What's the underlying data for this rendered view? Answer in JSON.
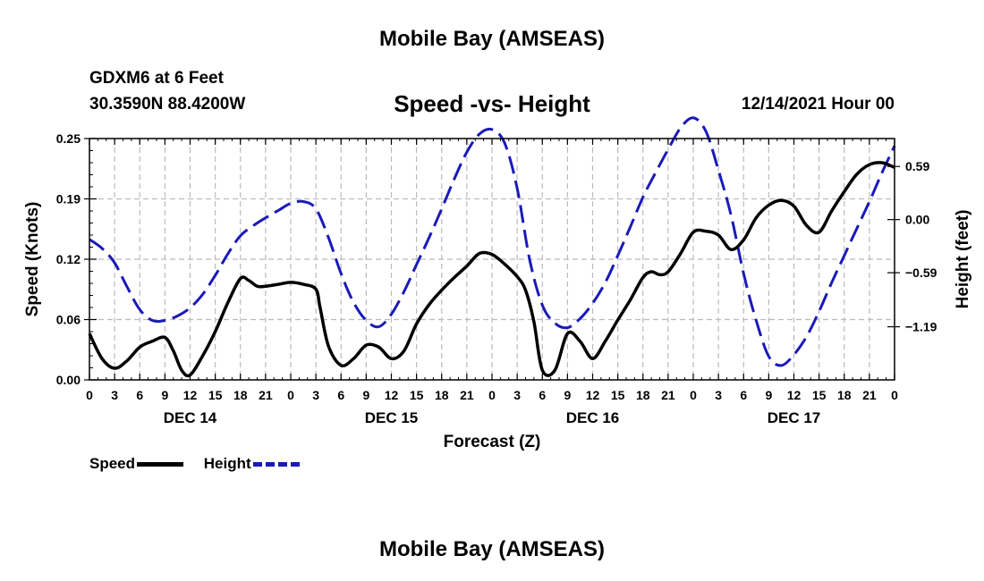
{
  "header": {
    "title": "Mobile Bay (AMSEAS)",
    "station": "GDXM6 at 6 Feet",
    "coordinates": "30.3590N  88.4200W",
    "subtitle": "Speed -vs- Height",
    "datetime": "12/14/2021 Hour 00"
  },
  "footer": {
    "title": "Mobile Bay (AMSEAS)"
  },
  "chart_data": {
    "type": "line",
    "xlabel": "Forecast (Z)",
    "ylabel_left": "Speed (Knots)",
    "ylabel_right": "Height (feet)",
    "xlim": [
      0,
      96
    ],
    "ylim_left": [
      0,
      0.25
    ],
    "ylim_right": [
      -1.78,
      0.9
    ],
    "x_tick_labels": [
      "0",
      "3",
      "6",
      "9",
      "12",
      "15",
      "18",
      "21",
      "0",
      "3",
      "6",
      "9",
      "12",
      "15",
      "18",
      "21",
      "0",
      "3",
      "6",
      "9",
      "12",
      "15",
      "18",
      "21",
      "0",
      "3",
      "6",
      "9",
      "12",
      "15",
      "18",
      "21",
      "0"
    ],
    "day_labels": [
      {
        "label": "DEC 14",
        "x": 12
      },
      {
        "label": "DEC 15",
        "x": 36
      },
      {
        "label": "DEC 16",
        "x": 60
      },
      {
        "label": "DEC 17",
        "x": 84
      }
    ],
    "y_left_ticks": [
      "0.00",
      "0.06",
      "0.12",
      "0.19",
      "0.25"
    ],
    "y_left_tick_values": [
      0,
      0.0625,
      0.125,
      0.1875,
      0.25
    ],
    "y_right_ticks": [
      "0.59",
      "0.00",
      "−0.59",
      "−1.19"
    ],
    "y_right_tick_values": [
      0.59,
      0,
      -0.59,
      -1.19
    ],
    "grid": true,
    "legend": [
      {
        "name": "Speed",
        "color": "#000000"
      },
      {
        "name": "Height",
        "color": "#1a1ab8"
      }
    ],
    "series": [
      {
        "name": "Speed",
        "axis": "left",
        "color": "#000000",
        "style": "solid",
        "x": [
          0,
          1.5,
          3,
          4.5,
          6,
          7.5,
          9,
          10,
          11,
          12,
          13.5,
          15,
          16.5,
          18,
          19,
          20,
          21,
          22.5,
          24,
          25.5,
          27,
          27.5,
          28.5,
          30,
          31.5,
          33,
          34.5,
          36,
          37.5,
          39,
          40.5,
          42,
          43.5,
          45,
          46.5,
          48,
          49.5,
          51,
          52,
          53,
          54,
          55.5,
          57,
          58.5,
          60,
          61.5,
          63,
          64.5,
          66,
          67,
          68,
          69,
          70.5,
          72,
          73.5,
          75,
          76.5,
          78,
          79.5,
          81,
          82.5,
          84,
          85.5,
          87,
          88.5,
          90,
          91.5,
          93,
          94.5,
          96
        ],
        "y": [
          0.048,
          0.022,
          0.012,
          0.02,
          0.034,
          0.04,
          0.044,
          0.03,
          0.01,
          0.005,
          0.025,
          0.05,
          0.08,
          0.105,
          0.103,
          0.097,
          0.097,
          0.099,
          0.101,
          0.099,
          0.094,
          0.075,
          0.035,
          0.015,
          0.022,
          0.036,
          0.034,
          0.022,
          0.03,
          0.058,
          0.078,
          0.093,
          0.106,
          0.118,
          0.131,
          0.13,
          0.12,
          0.107,
          0.093,
          0.06,
          0.01,
          0.01,
          0.048,
          0.04,
          0.022,
          0.04,
          0.062,
          0.083,
          0.106,
          0.112,
          0.109,
          0.112,
          0.131,
          0.153,
          0.154,
          0.15,
          0.135,
          0.145,
          0.168,
          0.181,
          0.186,
          0.18,
          0.16,
          0.153,
          0.175,
          0.195,
          0.213,
          0.223,
          0.225,
          0.22
        ]
      },
      {
        "name": "Height",
        "axis": "right",
        "color": "#1a1ab8",
        "style": "dashed",
        "x": [
          0,
          1.5,
          3,
          4.5,
          6,
          7.5,
          9,
          10.5,
          12,
          13.5,
          15,
          16.5,
          18,
          19.5,
          21,
          22.5,
          24,
          25.5,
          27,
          28.5,
          30,
          31.5,
          33,
          34.5,
          36,
          37.5,
          39,
          40.5,
          42,
          43.5,
          45,
          46.5,
          48,
          49.5,
          51,
          52.5,
          54,
          55.5,
          57,
          58.5,
          60,
          61.5,
          63,
          64.5,
          66,
          67.5,
          69,
          70.5,
          72,
          73.5,
          75,
          76.5,
          78,
          79.5,
          81,
          82.5,
          84,
          85.5,
          87,
          88.5,
          90,
          91.5,
          93,
          94.5,
          96
        ],
        "y": [
          -0.22,
          -0.32,
          -0.48,
          -0.75,
          -1.0,
          -1.12,
          -1.12,
          -1.07,
          -0.98,
          -0.83,
          -0.62,
          -0.38,
          -0.18,
          -0.07,
          0.02,
          0.1,
          0.18,
          0.2,
          0.12,
          -0.2,
          -0.6,
          -0.92,
          -1.12,
          -1.19,
          -1.05,
          -0.8,
          -0.5,
          -0.2,
          0.12,
          0.45,
          0.75,
          0.95,
          1.0,
          0.85,
          0.35,
          -0.45,
          -0.95,
          -1.15,
          -1.2,
          -1.1,
          -0.93,
          -0.7,
          -0.4,
          -0.08,
          0.25,
          0.52,
          0.78,
          1.02,
          1.13,
          0.98,
          0.55,
          0.05,
          -0.6,
          -1.12,
          -1.52,
          -1.62,
          -1.5,
          -1.3,
          -1.02,
          -0.7,
          -0.4,
          -0.1,
          0.2,
          0.52,
          0.82
        ]
      }
    ]
  }
}
